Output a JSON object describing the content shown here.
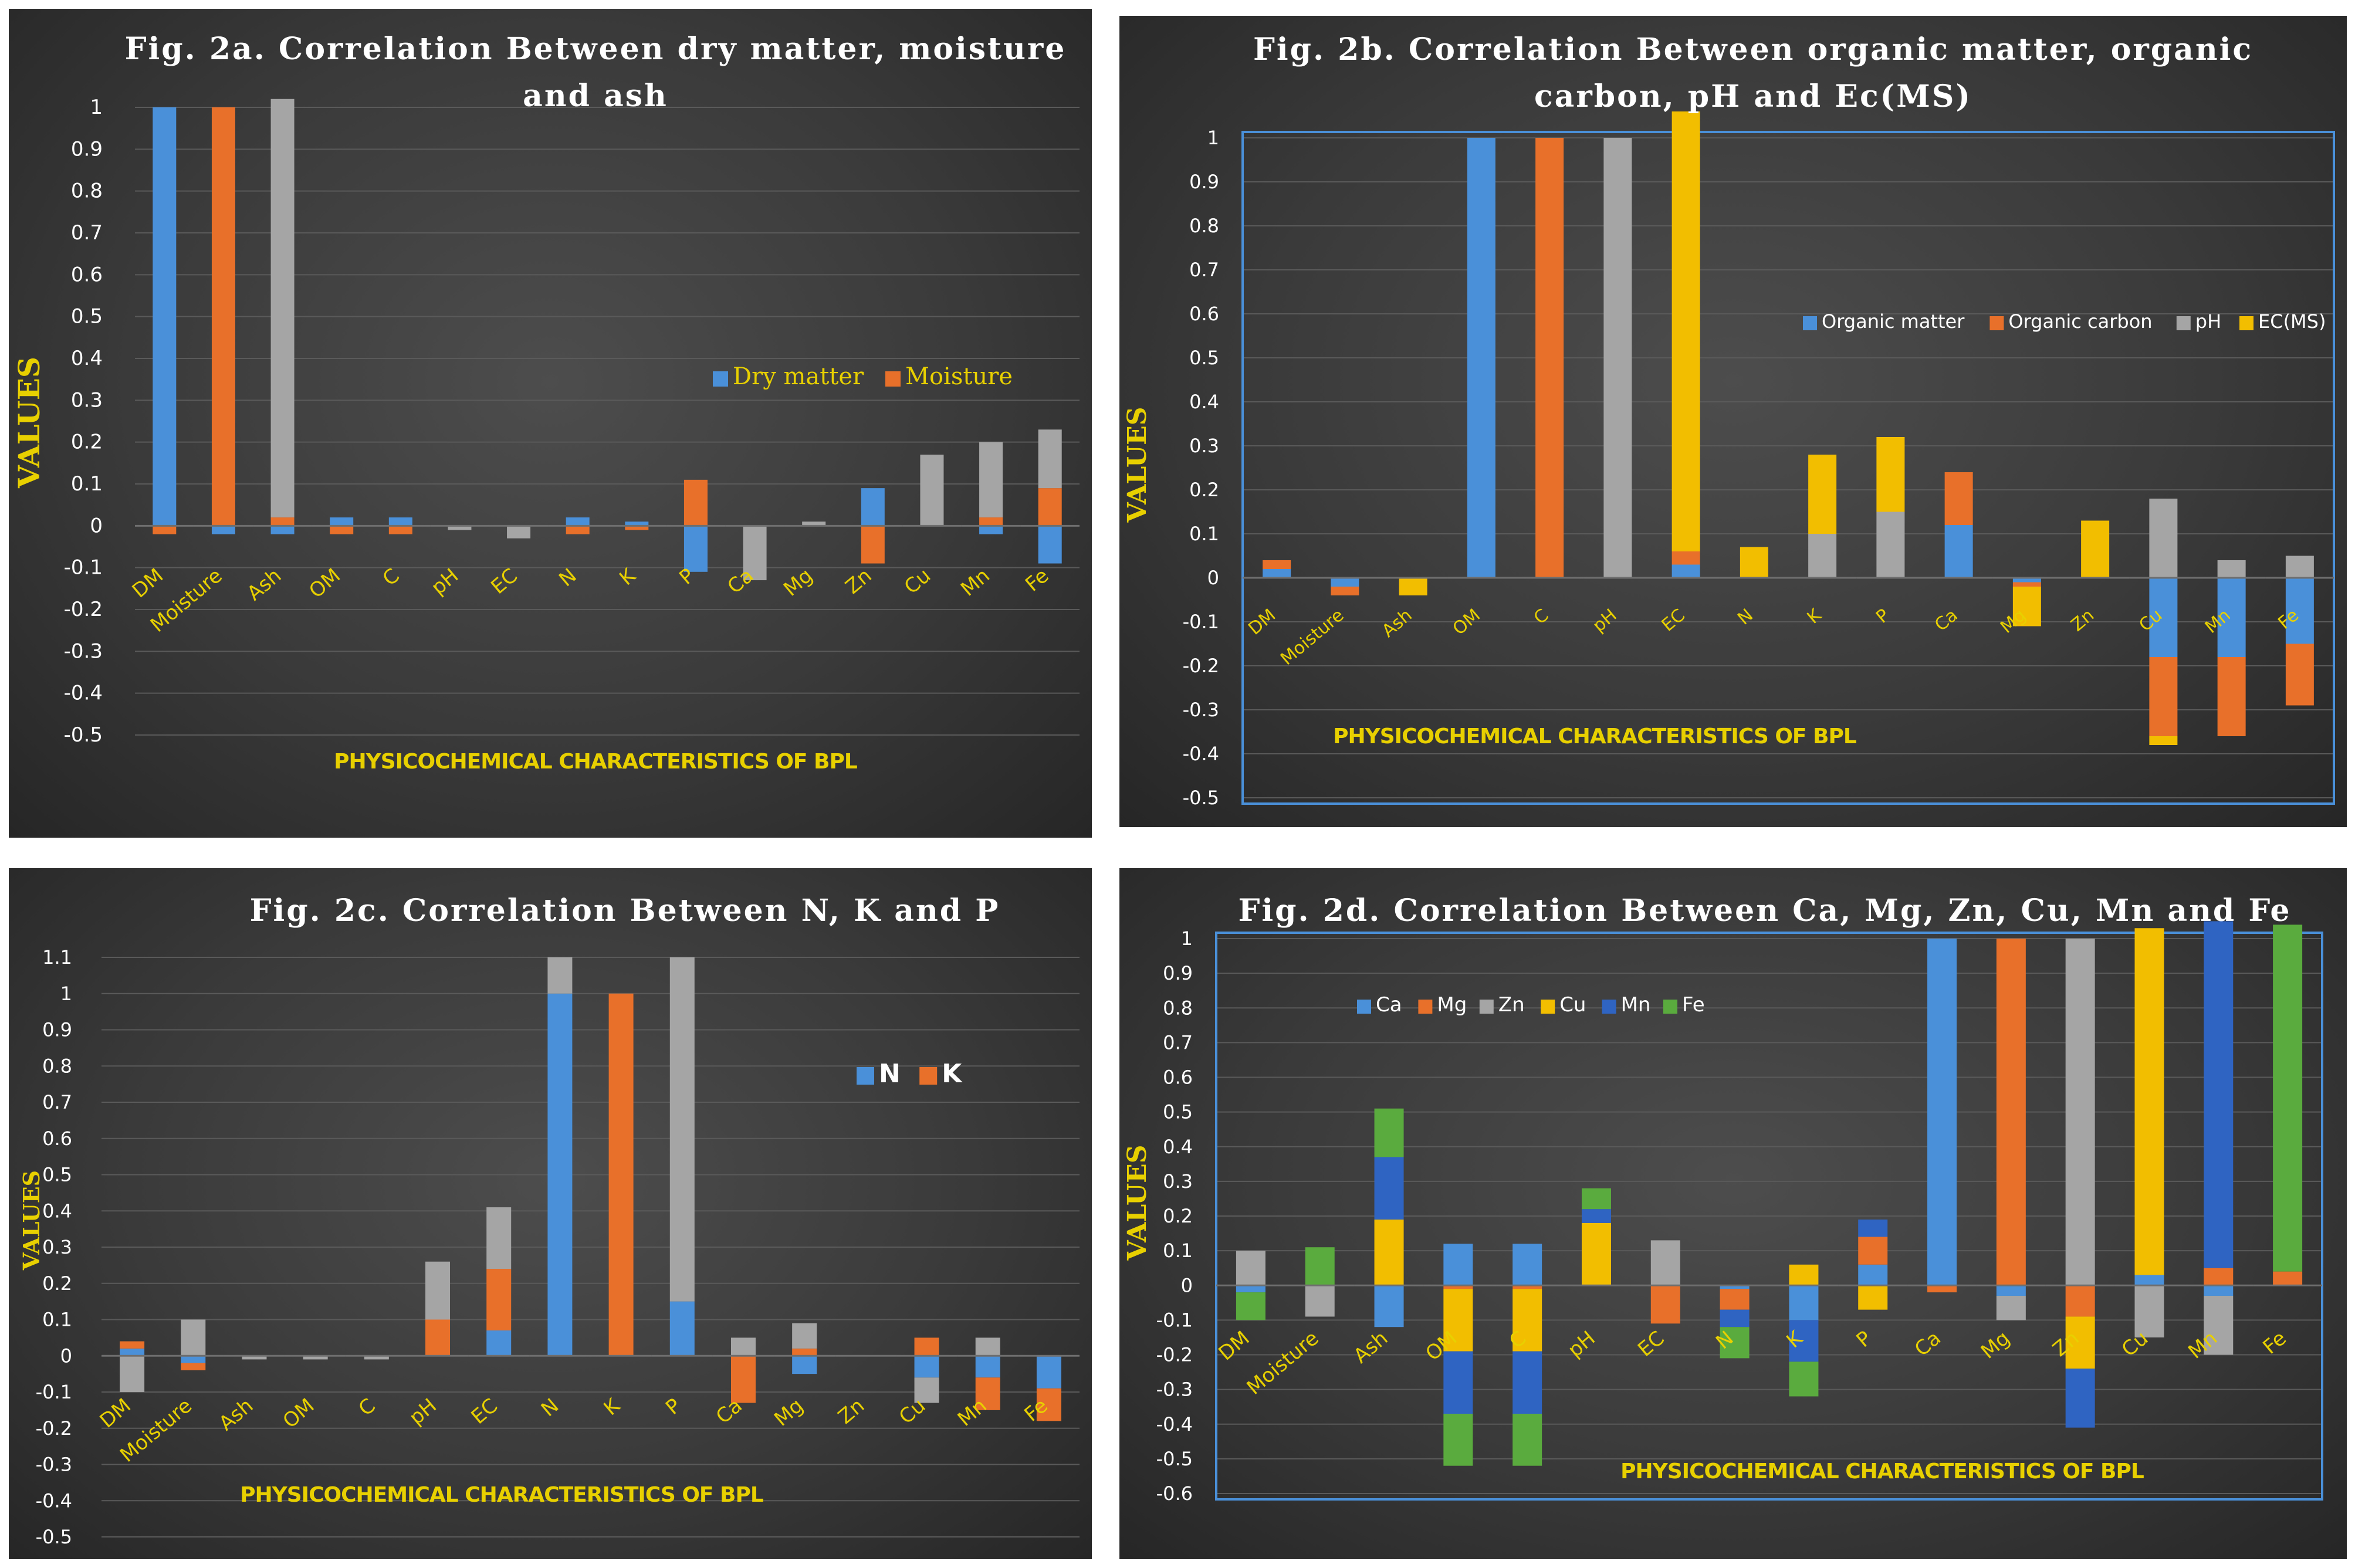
{
  "colors": {
    "blue": "#4a90d9",
    "orange": "#e8702a",
    "gray": "#a5a5a5",
    "yellow": "#f2be00",
    "dblue": "#2f64c2",
    "green": "#5aab3e"
  },
  "chart_data": [
    {
      "type": "bar",
      "stacked": true,
      "title": "Fig. 2a. Correlation Between dry matter, moisture and ash",
      "xlabel": "PHYSICOCHEMICAL CHARACTERISTICS OF BPL",
      "ylabel": "VALUES",
      "ylim": [
        -0.5,
        1
      ],
      "ticks": [
        "1",
        "0.9",
        "0.8",
        "0.7",
        "0.6",
        "0.5",
        "0.4",
        "0.3",
        "0.2",
        "0.1",
        "0",
        "-0.1",
        "-0.2",
        "-0.3",
        "-0.4",
        "-0.5"
      ],
      "categories": [
        "DM",
        "Moisture",
        "Ash",
        "OM",
        "C",
        "pH",
        "EC",
        "N",
        "K",
        "P",
        "Ca",
        "Mg",
        "Zn",
        "Cu",
        "Mn",
        "Fe"
      ],
      "legend": [
        "Dry matter",
        "Moisture"
      ],
      "series": [
        {
          "name": "Dry matter",
          "color": "#4a90d9",
          "values": [
            1,
            -0.02,
            -0.02,
            0.02,
            0.02,
            0,
            0,
            0.02,
            0.01,
            -0.11,
            0,
            0,
            0.09,
            0,
            -0.02,
            -0.09
          ]
        },
        {
          "name": "Moisture",
          "color": "#e8702a",
          "values": [
            -0.02,
            1,
            0.02,
            -0.02,
            -0.02,
            0,
            0,
            -0.02,
            -0.01,
            0.11,
            0,
            0,
            -0.09,
            0,
            0.02,
            0.09
          ]
        },
        {
          "name": "Ash",
          "color": "#a5a5a5",
          "values": [
            0,
            0,
            1,
            0,
            0,
            -0.01,
            -0.03,
            0,
            0,
            0,
            -0.13,
            0.01,
            0,
            0.17,
            0.18,
            0.14
          ]
        }
      ]
    },
    {
      "type": "bar",
      "stacked": true,
      "title": "Fig. 2b. Correlation Between organic matter, organic carbon, pH and Ec(MS)",
      "xlabel": "PHYSICOCHEMICAL CHARACTERISTICS OF BPL",
      "ylabel": "VALUES",
      "ylim": [
        -0.5,
        1
      ],
      "ticks": [
        "1",
        "0.9",
        "0.8",
        "0.7",
        "0.6",
        "0.5",
        "0.4",
        "0.3",
        "0.2",
        "0.1",
        "0",
        "-0.1",
        "-0.2",
        "-0.3",
        "-0.4",
        "-0.5"
      ],
      "categories": [
        "DM",
        "Moisture",
        "Ash",
        "OM",
        "C",
        "pH",
        "EC",
        "N",
        "K",
        "P",
        "Ca",
        "Mg",
        "Zn",
        "Cu",
        "Mn",
        "Fe"
      ],
      "legend": [
        "Organic matter",
        "Organic carbon",
        "pH",
        "EC(MS)"
      ],
      "series": [
        {
          "name": "Organic matter",
          "color": "#4a90d9",
          "values": [
            0.02,
            -0.02,
            0,
            1,
            0,
            0,
            0.03,
            0,
            0,
            0,
            0.12,
            -0.01,
            0,
            -0.18,
            -0.18,
            -0.15
          ]
        },
        {
          "name": "Organic carbon",
          "color": "#e8702a",
          "values": [
            0.02,
            -0.02,
            0,
            0,
            1,
            0,
            0.03,
            0,
            0,
            0,
            0.12,
            -0.01,
            0,
            -0.18,
            -0.18,
            -0.14
          ]
        },
        {
          "name": "pH",
          "color": "#a5a5a5",
          "values": [
            0,
            0,
            0,
            0,
            0,
            1,
            0,
            0,
            0.1,
            0.15,
            0,
            0,
            0,
            0.18,
            0.04,
            0.05
          ]
        },
        {
          "name": "EC(MS)",
          "color": "#f2be00",
          "values": [
            0,
            0,
            -0.04,
            0,
            0,
            0,
            1,
            0.07,
            0.18,
            0.17,
            0,
            -0.09,
            0.13,
            -0.02,
            0,
            0
          ]
        }
      ]
    },
    {
      "type": "bar",
      "stacked": true,
      "title": "Fig. 2c. Correlation Between N, K and P",
      "xlabel": "PHYSICOCHEMICAL CHARACTERISTICS OF BPL",
      "ylabel": "VALUES",
      "ylim": [
        -0.5,
        1.1
      ],
      "ticks": [
        "1.1",
        "1",
        "0.9",
        "0.8",
        "0.7",
        "0.6",
        "0.5",
        "0.4",
        "0.3",
        "0.2",
        "0.1",
        "0",
        "-0.1",
        "-0.2",
        "-0.3",
        "-0.4",
        "-0.5"
      ],
      "categories": [
        "DM",
        "Moisture",
        "Ash",
        "OM",
        "C",
        "pH",
        "EC",
        "N",
        "K",
        "P",
        "Ca",
        "Mg",
        "Zn",
        "Cu",
        "Mn",
        "Fe"
      ],
      "legend": [
        "N",
        "K"
      ],
      "series": [
        {
          "name": "N",
          "color": "#4a90d9",
          "values": [
            0.02,
            -0.02,
            0,
            0,
            0,
            0,
            0.07,
            1,
            0,
            0.15,
            0,
            -0.05,
            0,
            -0.06,
            -0.06,
            -0.09
          ]
        },
        {
          "name": "K",
          "color": "#e8702a",
          "values": [
            0.02,
            -0.02,
            0,
            0,
            0,
            0.1,
            0.17,
            0,
            1,
            0,
            -0.13,
            0.02,
            0,
            0.05,
            -0.09,
            -0.09
          ]
        },
        {
          "name": "P",
          "color": "#a5a5a5",
          "values": [
            -0.1,
            0.1,
            -0.01,
            -0.01,
            -0.01,
            0.16,
            0.17,
            0.1,
            0,
            0.95,
            0.05,
            0.07,
            0,
            -0.07,
            0.05,
            0
          ]
        }
      ]
    },
    {
      "type": "bar",
      "stacked": true,
      "title": "Fig. 2d. Correlation Between Ca, Mg, Zn, Cu, Mn and Fe",
      "xlabel": "PHYSICOCHEMICAL CHARACTERISTICS OF BPL",
      "ylabel": "VALUES",
      "ylim": [
        -0.6,
        1
      ],
      "ticks": [
        "1",
        "0.9",
        "0.8",
        "0.7",
        "0.6",
        "0.5",
        "0.4",
        "0.3",
        "0.2",
        "0.1",
        "0",
        "-0.1",
        "-0.2",
        "-0.3",
        "-0.4",
        "-0.5",
        "-0.6"
      ],
      "categories": [
        "DM",
        "Moisture",
        "Ash",
        "OM",
        "C",
        "pH",
        "EC",
        "N",
        "K",
        "P",
        "Ca",
        "Mg",
        "Zn",
        "Cu",
        "Mn",
        "Fe"
      ],
      "legend": [
        "Ca",
        "Mg",
        "Zn",
        "Cu",
        "Mn",
        "Fe"
      ],
      "series": [
        {
          "name": "Ca",
          "color": "#4a90d9",
          "values": [
            -0.02,
            0,
            -0.12,
            0.12,
            0.12,
            0,
            0,
            -0.01,
            -0.1,
            0.06,
            1,
            -0.03,
            0,
            0.03,
            -0.03,
            0
          ]
        },
        {
          "name": "Mg",
          "color": "#e8702a",
          "values": [
            0,
            0,
            0,
            -0.01,
            -0.01,
            0,
            -0.11,
            -0.06,
            0,
            0.08,
            -0.02,
            1,
            -0.09,
            0,
            0.05,
            0.04
          ]
        },
        {
          "name": "Zn",
          "color": "#a5a5a5",
          "values": [
            0.1,
            -0.09,
            0,
            0,
            0,
            0,
            0.13,
            0,
            0,
            0,
            0,
            -0.07,
            1,
            -0.15,
            -0.17,
            0
          ]
        },
        {
          "name": "Cu",
          "color": "#f2be00",
          "values": [
            0,
            0,
            0.19,
            -0.18,
            -0.18,
            0.18,
            0,
            0,
            0.06,
            -0.07,
            0,
            0,
            -0.15,
            1,
            0,
            0
          ]
        },
        {
          "name": "Mn",
          "color": "#2f64c2",
          "values": [
            0,
            0,
            0.18,
            -0.18,
            -0.18,
            0.04,
            0,
            -0.05,
            -0.12,
            0.05,
            0,
            0,
            -0.17,
            0,
            1,
            0
          ]
        },
        {
          "name": "Fe",
          "color": "#5aab3e",
          "values": [
            -0.08,
            0.11,
            0.14,
            -0.15,
            -0.15,
            0.06,
            0,
            -0.09,
            -0.1,
            0,
            0,
            0,
            0,
            0,
            0,
            1
          ]
        }
      ]
    }
  ]
}
